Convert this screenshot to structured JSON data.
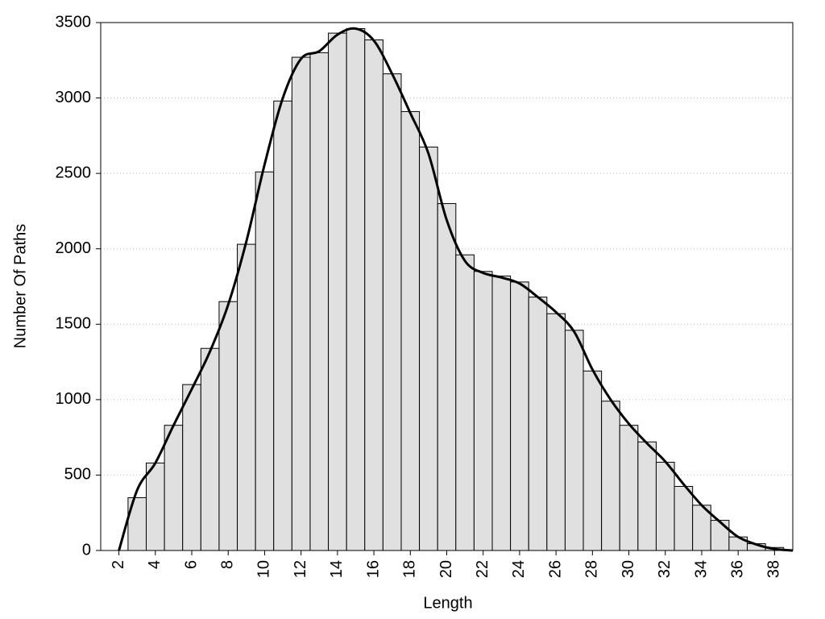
{
  "chart_data": {
    "type": "histogram",
    "xlabel": "Length",
    "ylabel": "Number Of Paths",
    "bins": [
      2.5,
      3.5,
      4.5,
      5.5,
      6.5,
      7.5,
      8.5,
      9.5,
      10.5,
      11.5,
      12.5,
      13.5,
      14.5,
      15.5,
      16.5,
      17.5,
      18.5,
      19.5,
      20.5,
      21.5,
      22.5,
      23.5,
      24.5,
      25.5,
      26.5,
      27.5,
      28.5,
      29.5,
      30.5,
      31.5,
      32.5,
      33.5,
      34.5,
      35.5,
      36.5,
      37.5,
      38.5
    ],
    "counts": [
      350,
      580,
      830,
      1100,
      1340,
      1650,
      2030,
      2510,
      2980,
      3270,
      3300,
      3430,
      3460,
      3385,
      3160,
      2910,
      2675,
      2300,
      1960,
      1850,
      1820,
      1780,
      1680,
      1570,
      1460,
      1190,
      990,
      830,
      720,
      585,
      425,
      300,
      200,
      90,
      45,
      20
    ],
    "color": "#e0e0e0",
    "curve": {
      "x": [
        2,
        3,
        4,
        5,
        6,
        7,
        8,
        9,
        10,
        11,
        12,
        13,
        14,
        15,
        16,
        17,
        18,
        19,
        20,
        21,
        22,
        23,
        24,
        25,
        26,
        27,
        28,
        29,
        30,
        31,
        32,
        33,
        34,
        35,
        36,
        37,
        38,
        39
      ],
      "values": [
        0,
        400,
        580,
        830,
        1070,
        1320,
        1630,
        2050,
        2560,
        3000,
        3260,
        3310,
        3420,
        3460,
        3380,
        3160,
        2900,
        2630,
        2190,
        1920,
        1840,
        1810,
        1770,
        1680,
        1580,
        1450,
        1200,
        1000,
        840,
        710,
        590,
        440,
        300,
        190,
        90,
        40,
        10,
        0
      ],
      "color": "#000000"
    },
    "xlim": [
      1,
      39
    ],
    "ylim": [
      0,
      3500
    ],
    "xticks": [
      2,
      4,
      6,
      8,
      10,
      12,
      14,
      16,
      18,
      20,
      22,
      24,
      26,
      28,
      30,
      32,
      34,
      36,
      38
    ],
    "yticks": [
      0,
      500,
      1000,
      1500,
      2000,
      2500,
      3000,
      3500
    ],
    "grid": true
  }
}
